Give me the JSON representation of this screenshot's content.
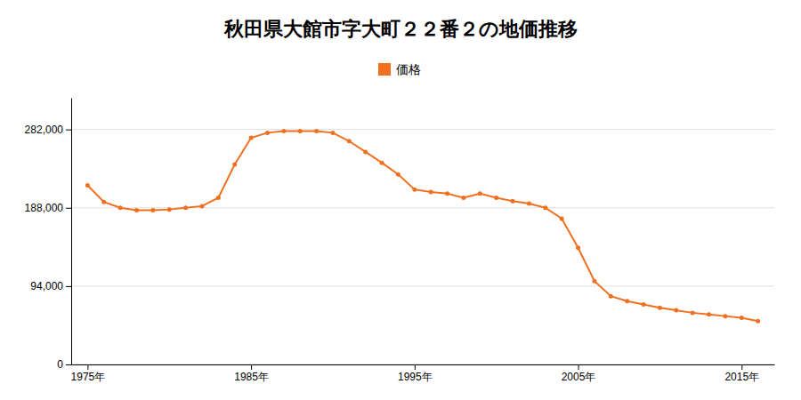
{
  "chart_data": {
    "type": "line",
    "title": "秋田県大館市字大町２２番２の地価推移",
    "x": [
      1975,
      1976,
      1977,
      1978,
      1979,
      1980,
      1981,
      1982,
      1983,
      1984,
      1985,
      1986,
      1987,
      1988,
      1989,
      1990,
      1991,
      1992,
      1993,
      1994,
      1995,
      1996,
      1997,
      1998,
      1999,
      2000,
      2001,
      2002,
      2003,
      2004,
      2005,
      2006,
      2007,
      2008,
      2009,
      2010,
      2011,
      2012,
      2013,
      2014,
      2015,
      2016
    ],
    "series": [
      {
        "name": "価格",
        "color": "#F07020",
        "marker": "circle",
        "values": [
          215000,
          195000,
          188000,
          185000,
          185000,
          186000,
          188000,
          190000,
          200000,
          240000,
          272000,
          278000,
          280000,
          280000,
          280000,
          278000,
          268000,
          255000,
          242000,
          228000,
          210000,
          207000,
          205000,
          200000,
          205000,
          200000,
          196000,
          193000,
          188000,
          175000,
          140000,
          100000,
          82000,
          76000,
          72000,
          68000,
          65000,
          62000,
          60000,
          58000,
          56000,
          52000
        ]
      }
    ],
    "xlim": [
      1974,
      2017
    ],
    "xticks": [
      {
        "value": 1975,
        "label": "1975年"
      },
      {
        "value": 1985,
        "label": "1985年"
      },
      {
        "value": 1995,
        "label": "1995年"
      },
      {
        "value": 2005,
        "label": "2005年"
      },
      {
        "value": 2015,
        "label": "2015年"
      }
    ],
    "ylim": [
      0,
      320000
    ],
    "yticks": [
      0,
      {
        "value": 94000,
        "label": "94,000"
      },
      {
        "value": 188000,
        "label": "188,000"
      },
      {
        "value": 282000,
        "label": "282,000"
      }
    ],
    "grid": true,
    "legend": "top"
  }
}
